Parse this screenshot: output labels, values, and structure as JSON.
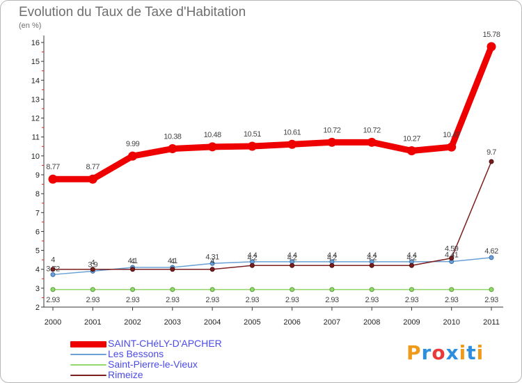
{
  "title": "Evolution du Taux de Taxe d'Habitation",
  "subtitle": "(en %)",
  "logo": {
    "text": "Proxiti",
    "colors": [
      "#f09a1a",
      "#2d8ee0",
      "#e83a3a",
      "#2d8ee0",
      "#f09a1a",
      "#2d8ee0",
      "#f09a1a"
    ]
  },
  "chart_data": {
    "type": "line",
    "title": "Evolution du Taux de Taxe d'Habitation",
    "ylabel": "(en %)",
    "xlabel": "",
    "x": [
      "2000",
      "2001",
      "2002",
      "2003",
      "2004",
      "2005",
      "2006",
      "2007",
      "2008",
      "2009",
      "2010",
      "2011"
    ],
    "ylim": [
      2,
      16
    ],
    "yticks": [
      "2",
      "3",
      "4",
      "5",
      "6",
      "7",
      "8",
      "9",
      "10",
      "11",
      "12",
      "13",
      "14",
      "15",
      "16"
    ],
    "series": [
      {
        "name": "SAINT-CHéLY-D'APCHER",
        "color": "#ee0000",
        "values": [
          8.77,
          8.77,
          9.99,
          10.38,
          10.48,
          10.51,
          10.61,
          10.72,
          10.72,
          10.27,
          10.47,
          15.78
        ],
        "labels": [
          "8.77",
          "8.77",
          "9.99",
          "10.38",
          "10.48",
          "10.51",
          "10.61",
          "10.72",
          "10.72",
          "10.27",
          "10.47",
          "15.78"
        ]
      },
      {
        "name": "Les Bessons",
        "color": "#6aa0d4",
        "values": [
          3.72,
          3.9,
          4.1,
          4.1,
          4.31,
          4.4,
          4.4,
          4.4,
          4.4,
          4.4,
          4.41,
          4.62
        ],
        "labels": [
          "3.72",
          "3.9",
          "4.1",
          "4.1",
          "4.31",
          "4.4",
          "4.4",
          "4.4",
          "4.4",
          "4.4",
          "4.41",
          "4.62"
        ]
      },
      {
        "name": "Saint-Pierre-le-Vieux",
        "color": "#92d86a",
        "values": [
          2.93,
          2.93,
          2.93,
          2.93,
          2.93,
          2.93,
          2.93,
          2.93,
          2.93,
          2.93,
          2.93,
          2.93
        ],
        "labels": [
          "2.93",
          "2.93",
          "2.93",
          "2.93",
          "2.93",
          "2.93",
          "2.93",
          "2.93",
          "2.93",
          "2.93",
          "2.93",
          "2.93"
        ]
      },
      {
        "name": "Rimeize",
        "color": "#7a1e1e",
        "values": [
          4,
          4,
          4,
          4,
          4,
          4.2,
          4.2,
          4.2,
          4.2,
          4.2,
          4.59,
          9.7
        ],
        "labels": [
          "4",
          "4",
          "4",
          "4",
          "4",
          "4.2",
          "4.2",
          "4.2",
          "4.2",
          "4.2",
          "4.59",
          "9.7"
        ]
      }
    ]
  }
}
